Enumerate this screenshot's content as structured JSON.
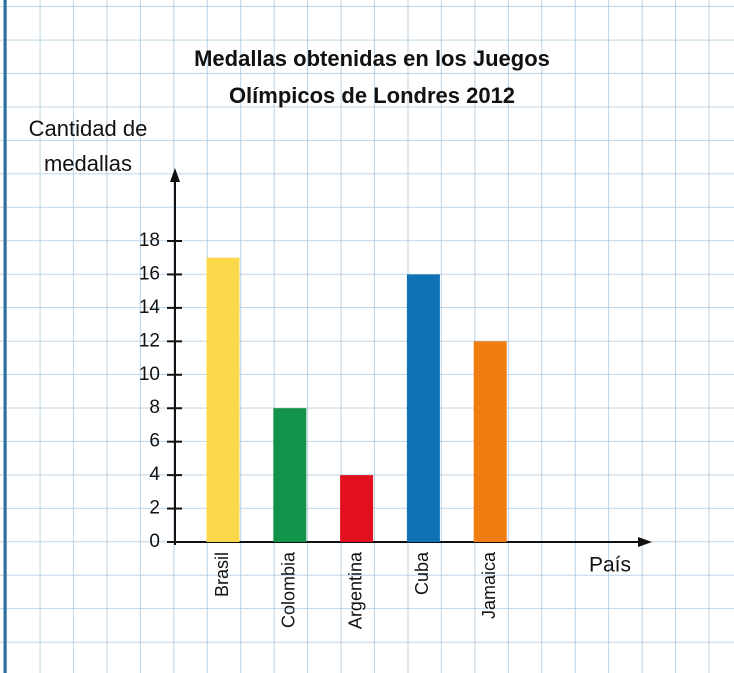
{
  "chart_data": {
    "type": "bar",
    "title": [
      "Medallas obtenidas en los Juegos",
      "Olímpicos de Londres 2012"
    ],
    "ylabel": [
      "Cantidad de",
      "medallas"
    ],
    "xlabel": "País",
    "categories": [
      "Brasil",
      "Colombia",
      "Argentina",
      "Cuba",
      "Jamaica"
    ],
    "values": [
      17,
      8,
      4,
      16,
      12
    ],
    "colors": [
      "#fbd84a",
      "#12934a",
      "#e2101e",
      "#0f72b4",
      "#ef7d10"
    ],
    "ylim": [
      0,
      18
    ],
    "yticks": [
      0,
      2,
      4,
      6,
      8,
      10,
      12,
      14,
      16,
      18
    ]
  }
}
